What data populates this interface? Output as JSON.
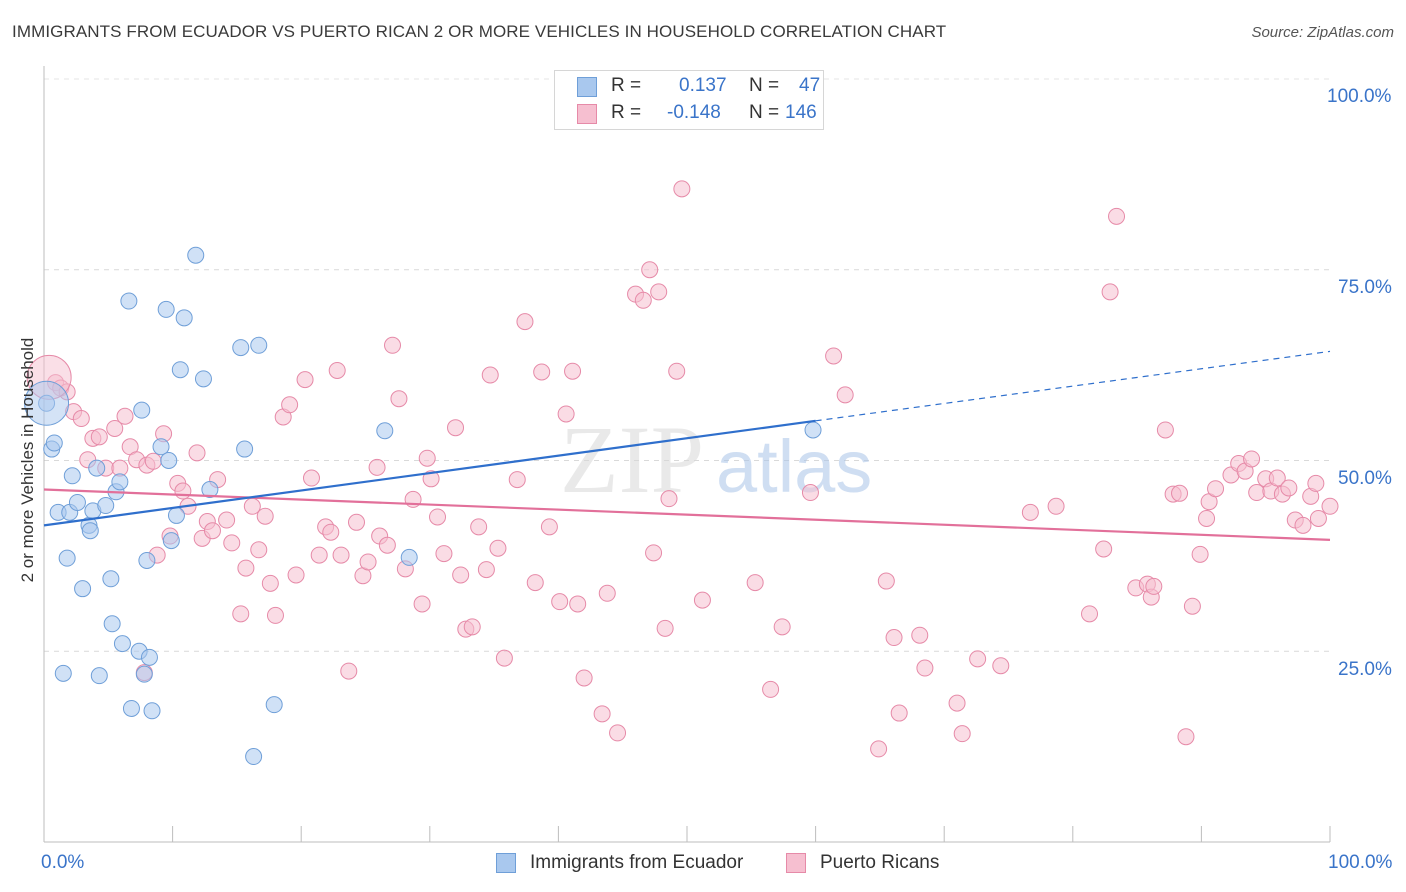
{
  "title": "IMMIGRANTS FROM ECUADOR VS PUERTO RICAN 2 OR MORE VEHICLES IN HOUSEHOLD CORRELATION CHART",
  "source": "Source: ZipAtlas.com",
  "watermark": {
    "zip": "ZIP",
    "atlas": "atlas"
  },
  "legend": {
    "rows": [
      {
        "r_label": "R =",
        "r_value": "0.137",
        "n_label": "N =",
        "n_value": "47",
        "color": "#a9c8ee",
        "border": "#6f9fd8"
      },
      {
        "r_label": "R =",
        "r_value": "-0.148",
        "n_label": "N =",
        "n_value": "146",
        "color": "#f6bfd0",
        "border": "#e68aa8"
      }
    ]
  },
  "bottom_legend": [
    {
      "label": "Immigrants from Ecuador",
      "color": "#a9c8ee",
      "border": "#6f9fd8"
    },
    {
      "label": "Puerto Ricans",
      "color": "#f6bfd0",
      "border": "#e68aa8"
    }
  ],
  "chart_data": {
    "type": "scatter",
    "title": "IMMIGRANTS FROM ECUADOR VS PUERTO RICAN 2 OR MORE VEHICLES IN HOUSEHOLD CORRELATION CHART",
    "xlabel": "",
    "ylabel": "2 or more Vehicles in Household",
    "xlim": [
      0,
      100
    ],
    "ylim": [
      0,
      100
    ],
    "x_tick_labels": [
      "0.0%",
      "100.0%"
    ],
    "y_tick_labels": [
      "25.0%",
      "50.0%",
      "75.0%",
      "100.0%"
    ],
    "y_ticks": [
      25,
      50,
      75,
      100
    ],
    "grid": true,
    "legend_position": "top-center",
    "series": [
      {
        "name": "Immigrants from Ecuador",
        "color": "#a9c8ee",
        "stroke": "#6f9fd8",
        "line_color": "#2f6fcc",
        "trend": {
          "x0": 0,
          "y0": 41.5,
          "x1": 60,
          "y1": 55.2,
          "dash_to_x": 100,
          "dash_to_y": 64.3
        },
        "points": [
          [
            0.2,
            57.5
          ],
          [
            0.6,
            51.5
          ],
          [
            0.8,
            52.3
          ],
          [
            1.1,
            43.2
          ],
          [
            1.5,
            22.1
          ],
          [
            1.8,
            37.2
          ],
          [
            2.0,
            43.2
          ],
          [
            2.2,
            48.0
          ],
          [
            2.6,
            44.5
          ],
          [
            3.0,
            33.2
          ],
          [
            3.5,
            41.5
          ],
          [
            3.6,
            40.8
          ],
          [
            3.8,
            43.4
          ],
          [
            4.1,
            49.0
          ],
          [
            4.3,
            21.8
          ],
          [
            4.8,
            44.1
          ],
          [
            5.2,
            34.5
          ],
          [
            5.3,
            28.6
          ],
          [
            5.6,
            45.9
          ],
          [
            5.9,
            47.2
          ],
          [
            6.1,
            26.0
          ],
          [
            6.6,
            70.9
          ],
          [
            6.8,
            17.5
          ],
          [
            7.4,
            25.0
          ],
          [
            7.6,
            56.6
          ],
          [
            7.8,
            22.0
          ],
          [
            8.0,
            36.9
          ],
          [
            8.2,
            24.2
          ],
          [
            8.4,
            17.2
          ],
          [
            9.1,
            51.8
          ],
          [
            9.5,
            69.8
          ],
          [
            9.7,
            50.0
          ],
          [
            9.9,
            39.5
          ],
          [
            10.3,
            42.8
          ],
          [
            10.6,
            61.9
          ],
          [
            10.9,
            68.7
          ],
          [
            11.8,
            76.9
          ],
          [
            12.4,
            60.7
          ],
          [
            12.9,
            46.2
          ],
          [
            15.3,
            64.8
          ],
          [
            15.6,
            51.5
          ],
          [
            16.3,
            11.2
          ],
          [
            16.7,
            65.1
          ],
          [
            17.9,
            18.0
          ],
          [
            26.5,
            53.9
          ],
          [
            28.4,
            37.3
          ],
          [
            59.8,
            54.0
          ]
        ],
        "big_point": [
          0.2,
          57.5
        ]
      },
      {
        "name": "Puerto Ricans",
        "color": "#f6bfd0",
        "stroke": "#e68aa8",
        "line_color": "#e2709a",
        "trend": {
          "x0": 0,
          "y0": 46.2,
          "x1": 100,
          "y1": 39.6
        },
        "points": [
          [
            0.9,
            60.2
          ],
          [
            1.3,
            59.5
          ],
          [
            1.8,
            59.0
          ],
          [
            2.3,
            56.4
          ],
          [
            2.9,
            55.5
          ],
          [
            3.4,
            50.1
          ],
          [
            3.8,
            52.9
          ],
          [
            4.3,
            53.1
          ],
          [
            4.8,
            49.0
          ],
          [
            5.5,
            54.2
          ],
          [
            5.9,
            49.0
          ],
          [
            6.3,
            55.8
          ],
          [
            6.7,
            51.8
          ],
          [
            7.2,
            50.1
          ],
          [
            7.8,
            22.2
          ],
          [
            8.0,
            49.4
          ],
          [
            8.5,
            49.9
          ],
          [
            8.8,
            37.6
          ],
          [
            9.3,
            53.5
          ],
          [
            9.8,
            40.1
          ],
          [
            10.4,
            47.0
          ],
          [
            10.8,
            46.0
          ],
          [
            11.2,
            44.0
          ],
          [
            11.9,
            51.0
          ],
          [
            12.3,
            39.8
          ],
          [
            12.7,
            42.0
          ],
          [
            13.1,
            40.8
          ],
          [
            13.5,
            47.5
          ],
          [
            14.2,
            42.2
          ],
          [
            14.6,
            39.2
          ],
          [
            15.3,
            29.9
          ],
          [
            15.7,
            35.9
          ],
          [
            16.2,
            44.0
          ],
          [
            16.7,
            38.3
          ],
          [
            17.2,
            42.7
          ],
          [
            17.6,
            33.9
          ],
          [
            18.0,
            29.7
          ],
          [
            18.6,
            55.7
          ],
          [
            19.1,
            57.3
          ],
          [
            19.6,
            35.0
          ],
          [
            20.3,
            60.6
          ],
          [
            20.8,
            47.7
          ],
          [
            21.4,
            37.6
          ],
          [
            21.9,
            41.3
          ],
          [
            22.3,
            40.6
          ],
          [
            22.8,
            61.8
          ],
          [
            23.1,
            37.6
          ],
          [
            23.7,
            22.4
          ],
          [
            24.3,
            41.9
          ],
          [
            24.8,
            34.9
          ],
          [
            25.2,
            36.7
          ],
          [
            25.9,
            49.1
          ],
          [
            26.1,
            40.1
          ],
          [
            26.7,
            38.9
          ],
          [
            27.1,
            65.1
          ],
          [
            27.6,
            58.1
          ],
          [
            28.1,
            35.8
          ],
          [
            28.7,
            44.9
          ],
          [
            29.4,
            31.2
          ],
          [
            29.8,
            50.3
          ],
          [
            30.1,
            47.6
          ],
          [
            30.6,
            42.6
          ],
          [
            31.1,
            37.8
          ],
          [
            32.0,
            54.3
          ],
          [
            32.4,
            35.0
          ],
          [
            32.8,
            27.9
          ],
          [
            33.3,
            28.2
          ],
          [
            33.8,
            41.3
          ],
          [
            34.4,
            35.7
          ],
          [
            34.7,
            61.2
          ],
          [
            35.3,
            38.5
          ],
          [
            35.8,
            24.1
          ],
          [
            36.8,
            47.5
          ],
          [
            37.4,
            68.2
          ],
          [
            38.2,
            34.0
          ],
          [
            38.7,
            61.6
          ],
          [
            39.3,
            41.3
          ],
          [
            40.1,
            31.5
          ],
          [
            40.6,
            56.1
          ],
          [
            41.1,
            61.7
          ],
          [
            41.5,
            31.2
          ],
          [
            42.0,
            21.5
          ],
          [
            43.4,
            16.8
          ],
          [
            43.8,
            32.6
          ],
          [
            44.6,
            14.3
          ],
          [
            46.0,
            71.8
          ],
          [
            46.6,
            71.0
          ],
          [
            47.1,
            75.0
          ],
          [
            47.4,
            37.9
          ],
          [
            47.8,
            72.1
          ],
          [
            48.3,
            28.0
          ],
          [
            48.6,
            45.0
          ],
          [
            49.2,
            61.7
          ],
          [
            49.6,
            85.6
          ],
          [
            51.2,
            31.7
          ],
          [
            55.3,
            34.0
          ],
          [
            56.5,
            20.0
          ],
          [
            57.4,
            28.2
          ],
          [
            59.6,
            45.8
          ],
          [
            61.4,
            63.7
          ],
          [
            62.3,
            58.6
          ],
          [
            64.9,
            12.2
          ],
          [
            65.5,
            34.2
          ],
          [
            66.1,
            26.8
          ],
          [
            66.5,
            16.9
          ],
          [
            68.1,
            27.1
          ],
          [
            68.5,
            22.8
          ],
          [
            71.0,
            18.2
          ],
          [
            71.4,
            14.2
          ],
          [
            72.6,
            24.0
          ],
          [
            74.4,
            23.1
          ],
          [
            76.7,
            43.2
          ],
          [
            78.7,
            44.0
          ],
          [
            81.3,
            29.9
          ],
          [
            82.4,
            38.4
          ],
          [
            82.9,
            72.1
          ],
          [
            83.4,
            82.0
          ],
          [
            84.9,
            33.3
          ],
          [
            85.8,
            33.8
          ],
          [
            86.1,
            32.1
          ],
          [
            86.3,
            33.5
          ],
          [
            87.2,
            54.0
          ],
          [
            87.8,
            45.6
          ],
          [
            88.3,
            45.7
          ],
          [
            88.8,
            13.8
          ],
          [
            89.3,
            30.9
          ],
          [
            89.9,
            37.7
          ],
          [
            90.4,
            42.4
          ],
          [
            90.6,
            44.6
          ],
          [
            91.1,
            46.3
          ],
          [
            92.3,
            48.1
          ],
          [
            92.9,
            49.6
          ],
          [
            93.4,
            48.6
          ],
          [
            93.9,
            50.2
          ],
          [
            94.3,
            45.8
          ],
          [
            95.0,
            47.6
          ],
          [
            95.4,
            46.0
          ],
          [
            95.9,
            47.7
          ],
          [
            96.3,
            45.6
          ],
          [
            96.8,
            46.4
          ],
          [
            97.3,
            42.2
          ],
          [
            97.9,
            41.5
          ],
          [
            98.5,
            45.3
          ],
          [
            98.9,
            47.0
          ],
          [
            99.1,
            42.4
          ],
          [
            100.0,
            44.0
          ]
        ],
        "big_point": [
          0.4,
          60.9
        ]
      }
    ]
  }
}
